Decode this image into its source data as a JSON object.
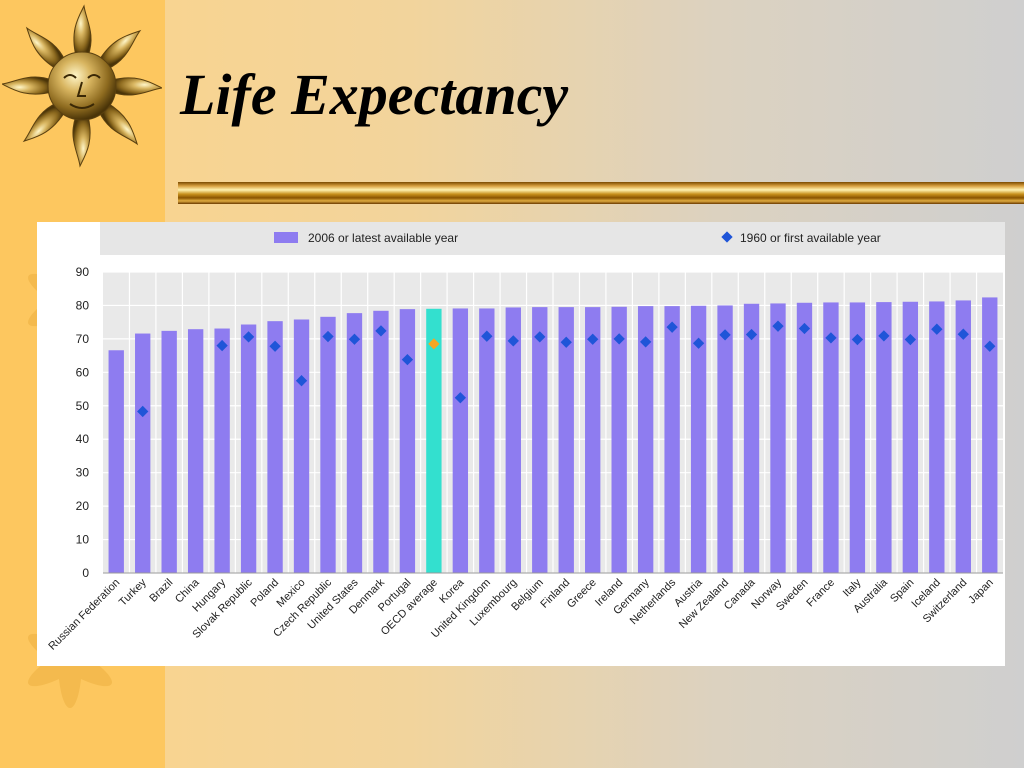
{
  "slide": {
    "title": "Life Expectancy"
  },
  "colors": {
    "bar": "#8e7cf0",
    "bar_highlight": "#33e0cf",
    "marker": "#1f55d8",
    "marker_highlight": "#f5a623",
    "plot_bg": "#e9e9e9",
    "legend_bg": "#e6e6e6",
    "slide_band": "#fdc75f"
  },
  "icons": {
    "logo": "sun-face-icon"
  },
  "chart_data": {
    "type": "bar",
    "title": "",
    "xlabel": "",
    "ylabel": "",
    "ylim": [
      0,
      90
    ],
    "yticks": [
      "0",
      "10",
      "20",
      "30",
      "40",
      "50",
      "60",
      "70",
      "80",
      "90"
    ],
    "grid": true,
    "legend_position": "top",
    "highlight_category": "OECD average",
    "categories": [
      "Russian Federation",
      "Turkey",
      "Brazil",
      "China",
      "Hungary",
      "Slovak Republic",
      "Poland",
      "Mexico",
      "Czech Republic",
      "United States",
      "Denmark",
      "Portugal",
      "OECD average",
      "Korea",
      "United Kingdom",
      "Luxembourg",
      "Belgium",
      "Finland",
      "Greece",
      "Ireland",
      "Germany",
      "Netherlands",
      "Austria",
      "New Zealand",
      "Canada",
      "Norway",
      "Sweden",
      "France",
      "Italy",
      "Australia",
      "Spain",
      "Iceland",
      "Switzerland",
      "Japan"
    ],
    "series": [
      {
        "name": "2006 or latest available year",
        "kind": "bar",
        "values": [
          66.6,
          71.6,
          72.4,
          72.9,
          73.1,
          74.3,
          75.3,
          75.8,
          76.6,
          77.7,
          78.4,
          78.9,
          79.0,
          79.1,
          79.1,
          79.4,
          79.5,
          79.5,
          79.5,
          79.6,
          79.8,
          79.8,
          79.9,
          80.0,
          80.5,
          80.6,
          80.8,
          80.9,
          80.9,
          81.0,
          81.1,
          81.2,
          81.5,
          82.4
        ]
      },
      {
        "name": "1960 or first available year",
        "kind": "marker",
        "values": [
          null,
          48.3,
          null,
          null,
          68.0,
          70.6,
          67.8,
          57.5,
          70.7,
          69.9,
          72.4,
          63.8,
          68.5,
          52.4,
          70.8,
          69.4,
          70.6,
          69.0,
          69.9,
          70.0,
          69.1,
          73.5,
          68.7,
          71.2,
          71.3,
          73.8,
          73.1,
          70.3,
          69.8,
          70.9,
          69.8,
          72.9,
          71.4,
          67.8
        ]
      }
    ]
  }
}
